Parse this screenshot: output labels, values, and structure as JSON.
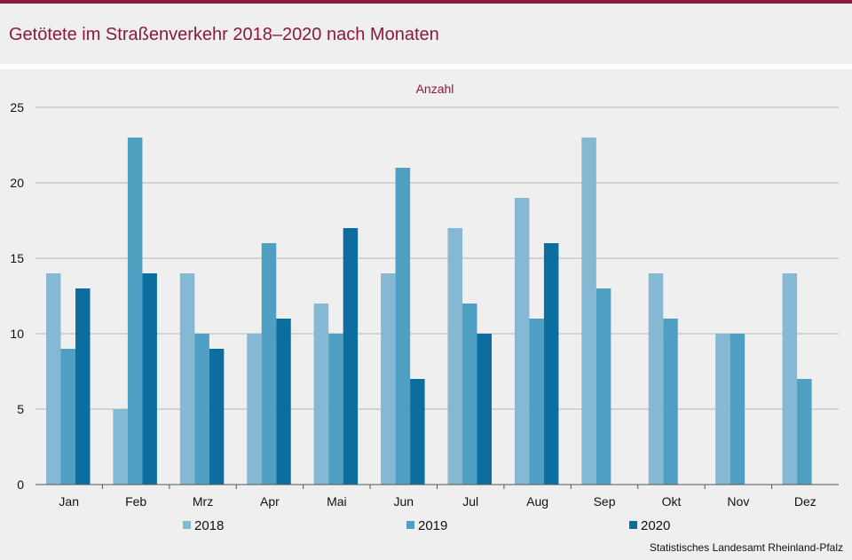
{
  "page": {
    "title": "Getötete im Straßenverkehr 2018–2020 nach Monaten",
    "source": "Statistisches Landesamt Rheinland-Pfalz"
  },
  "chart_data": {
    "type": "bar",
    "unit_label": "Anzahl",
    "categories": [
      "Jan",
      "Feb",
      "Mrz",
      "Apr",
      "Mai",
      "Jun",
      "Jul",
      "Aug",
      "Sep",
      "Okt",
      "Nov",
      "Dez"
    ],
    "series": [
      {
        "name": "2018",
        "color": "#85b8d2",
        "values": [
          14,
          5,
          14,
          10,
          12,
          14,
          17,
          19,
          23,
          14,
          10,
          14
        ]
      },
      {
        "name": "2019",
        "color": "#4f9fc2",
        "values": [
          9,
          23,
          10,
          16,
          10,
          21,
          12,
          11,
          13,
          11,
          10,
          7
        ]
      },
      {
        "name": "2020",
        "color": "#0b6e9e",
        "values": [
          13,
          14,
          9,
          11,
          17,
          7,
          10,
          16,
          null,
          null,
          null,
          null
        ]
      }
    ],
    "ylim": [
      0,
      25
    ],
    "yticks": [
      0,
      5,
      10,
      15,
      20,
      25
    ],
    "grid": true,
    "legend_position": "bottom"
  }
}
